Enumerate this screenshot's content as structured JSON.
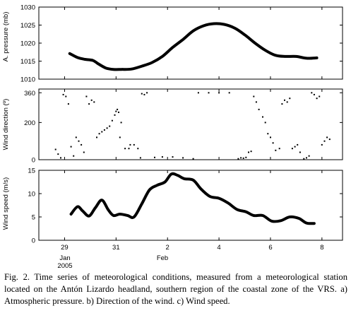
{
  "chart_data": [
    {
      "type": "line",
      "title": "",
      "ylabel": "A. pressure (mb)",
      "ylim": [
        1010,
        1030
      ],
      "yticks": [
        1010,
        1015,
        1020,
        1025,
        1030
      ],
      "xlim": [
        28.0,
        39.8
      ],
      "series": [
        {
          "x": [
            29.2,
            29.5,
            29.8,
            30.1,
            30.3,
            30.6,
            30.9,
            31.2,
            31.6,
            32.0,
            32.4,
            32.8,
            33.2,
            33.6,
            34.0,
            34.4,
            34.8,
            35.2,
            35.6,
            36.0,
            36.4,
            36.8,
            37.2,
            37.6,
            38.0,
            38.4,
            38.8
          ],
          "y": [
            1017.1,
            1016.0,
            1015.5,
            1015.2,
            1014.3,
            1013.1,
            1012.7,
            1012.7,
            1012.8,
            1013.6,
            1014.6,
            1016.3,
            1018.8,
            1021.0,
            1023.4,
            1024.8,
            1025.4,
            1025.2,
            1024.2,
            1022.3,
            1020.0,
            1018.0,
            1016.6,
            1016.3,
            1016.3,
            1015.8,
            1015.9
          ]
        }
      ]
    },
    {
      "type": "scatter",
      "title": "",
      "ylabel": "Wind direction (º)",
      "ylim": [
        0,
        380
      ],
      "yticks": [
        0,
        200,
        360
      ],
      "xlim": [
        28.0,
        39.8
      ],
      "x": [
        28.65,
        28.75,
        28.85,
        28.95,
        29.05,
        29.15,
        29.25,
        29.35,
        29.45,
        29.55,
        29.65,
        29.75,
        29.85,
        29.95,
        30.05,
        30.15,
        30.25,
        30.35,
        30.45,
        30.55,
        30.65,
        30.75,
        30.85,
        30.95,
        31.0,
        31.05,
        31.1,
        31.15,
        31.2,
        31.35,
        31.5,
        31.55,
        31.7,
        31.85,
        31.95,
        32.0,
        32.1,
        32.2,
        32.5,
        32.8,
        33.2,
        33.6,
        34.0,
        34.2,
        34.6,
        35.0,
        35.4,
        35.75,
        35.85,
        35.95,
        36.05,
        36.15,
        36.25,
        36.35,
        36.45,
        36.55,
        36.7,
        36.8,
        36.9,
        37.0,
        37.1,
        37.2,
        37.35,
        37.45,
        37.55,
        37.65,
        37.75,
        37.85,
        37.95,
        38.05,
        38.15,
        38.3,
        38.4,
        38.5,
        38.6,
        38.7,
        38.8,
        38.9,
        39.0,
        39.1,
        39.2,
        39.3
      ],
      "y": [
        55,
        30,
        10,
        350,
        340,
        300,
        70,
        20,
        120,
        100,
        80,
        40,
        340,
        300,
        320,
        310,
        120,
        140,
        150,
        160,
        170,
        180,
        210,
        240,
        260,
        270,
        255,
        120,
        200,
        60,
        60,
        80,
        80,
        60,
        10,
        355,
        350,
        360,
        12,
        15,
        15,
        10,
        5,
        360,
        360,
        360,
        360,
        5,
        10,
        8,
        12,
        40,
        45,
        340,
        310,
        270,
        230,
        200,
        140,
        120,
        90,
        50,
        60,
        300,
        320,
        310,
        330,
        60,
        70,
        80,
        40,
        5,
        10,
        20,
        360,
        350,
        330,
        340,
        80,
        100,
        120,
        110
      ]
    },
    {
      "type": "line",
      "title": "",
      "xlabel": "",
      "ylabel": "Wind speed (m/s)",
      "ylim": [
        0,
        15
      ],
      "yticks": [
        0,
        5,
        10,
        15
      ],
      "xlim": [
        28.0,
        39.8
      ],
      "xticks": [
        29,
        31,
        33,
        35,
        37,
        39
      ],
      "xticklabels": [
        "29",
        "31",
        "2",
        "4",
        "6",
        "8"
      ],
      "month_labels": [
        "Jan",
        "2005",
        "Feb"
      ],
      "series": [
        {
          "x": [
            29.25,
            29.5,
            29.7,
            29.95,
            30.2,
            30.45,
            30.7,
            30.9,
            31.15,
            31.45,
            31.7,
            32.0,
            32.3,
            32.6,
            32.9,
            33.15,
            33.4,
            33.65,
            34.0,
            34.3,
            34.65,
            35.0,
            35.35,
            35.7,
            36.05,
            36.35,
            36.7,
            37.05,
            37.4,
            37.75,
            38.1,
            38.4,
            38.7
          ],
          "y": [
            5.6,
            7.2,
            6.3,
            5.2,
            7.0,
            8.6,
            6.5,
            5.3,
            5.6,
            5.3,
            5.0,
            7.8,
            10.8,
            11.8,
            12.5,
            14.2,
            13.9,
            13.2,
            12.9,
            11.0,
            9.4,
            9.0,
            8.0,
            6.6,
            6.1,
            5.3,
            5.3,
            4.1,
            4.2,
            5.0,
            4.7,
            3.7,
            3.6
          ]
        }
      ]
    }
  ],
  "caption": "Fig. 2. Time series of meteorological conditions, measured from a meteorological station located on the Antón Lizardo headland, southern region of the coastal zone of the VRS. a) Atmospheric pressure. b) Direction of the wind. c) Wind speed."
}
